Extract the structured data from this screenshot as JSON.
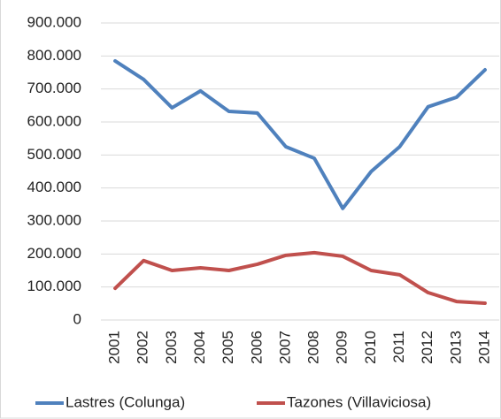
{
  "chart_data": {
    "type": "line",
    "categories": [
      "2001",
      "2002",
      "2003",
      "2004",
      "2005",
      "2006",
      "2007",
      "2008",
      "2009",
      "2010",
      "2011",
      "2012",
      "2013",
      "2014"
    ],
    "series": [
      {
        "name": "Lastres (Colunga)",
        "color": "#4f81bd",
        "values": [
          785000,
          729000,
          643000,
          694000,
          632000,
          627000,
          525000,
          490000,
          338000,
          450000,
          525000,
          646000,
          675000,
          758000
        ]
      },
      {
        "name": "Tazones (Villaviciosa)",
        "color": "#c0504d",
        "values": [
          96000,
          180000,
          150000,
          158000,
          150000,
          169000,
          196000,
          204000,
          193000,
          150000,
          137000,
          83000,
          56000,
          51000
        ]
      }
    ],
    "ylim": [
      0,
      900000
    ],
    "yticks": [
      0,
      {
        "value": 100000,
        "label": "100.000"
      },
      {
        "value": 200000,
        "label": "200.000"
      },
      {
        "value": 300000,
        "label": "300.000"
      },
      {
        "value": 400000,
        "label": "400.000"
      },
      {
        "value": 500000,
        "label": "500.000"
      },
      {
        "value": 600000,
        "label": "600.000"
      },
      {
        "value": 700000,
        "label": "700.000"
      },
      {
        "value": 800000,
        "label": "800.000"
      },
      {
        "value": 900000,
        "label": "900.000"
      }
    ],
    "grid": true,
    "legend": "bottom"
  }
}
